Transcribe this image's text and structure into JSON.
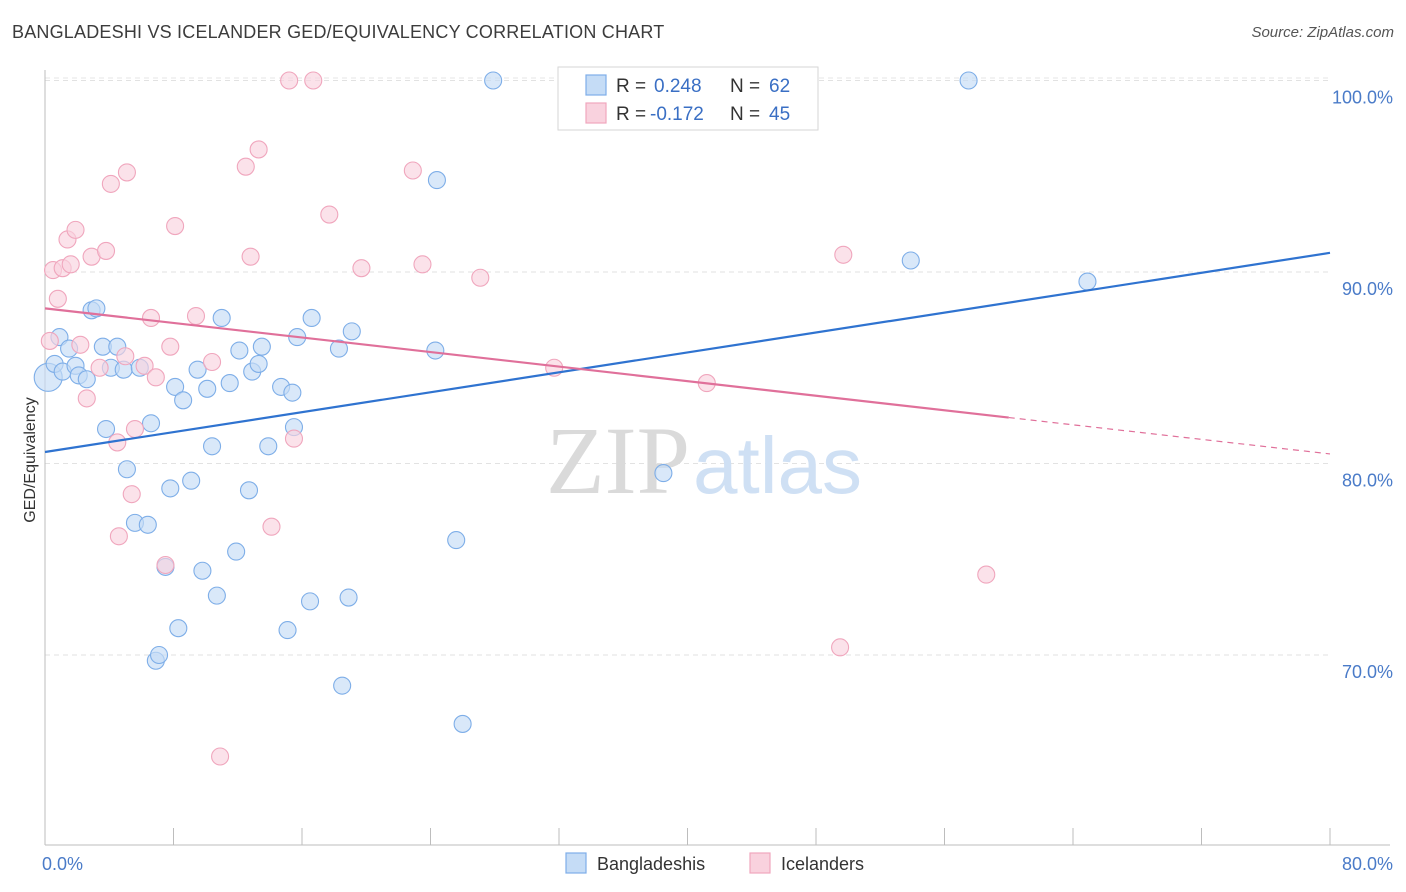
{
  "title": "BANGLADESHI VS ICELANDER GED/EQUIVALENCY CORRELATION CHART",
  "source": "Source: ZipAtlas.com",
  "watermark": {
    "zip": "ZIP",
    "atlas": "atlas"
  },
  "chart_data": {
    "type": "scatter",
    "ylabel": "GED/Equivalency",
    "xlim": [
      0,
      80
    ],
    "ylim": [
      60,
      103
    ],
    "y_ticks": [
      {
        "value": 100,
        "label": "100.0%"
      },
      {
        "value": 90,
        "label": "90.0%"
      },
      {
        "value": 80,
        "label": "80.0%"
      },
      {
        "value": 70,
        "label": "70.0%"
      }
    ],
    "x_tick_labels": [
      {
        "value": 0,
        "label": "0.0%"
      },
      {
        "value": 80,
        "label": "80.0%"
      }
    ],
    "x_minor_ticks": [
      0,
      8,
      16,
      24,
      32,
      40,
      48,
      56,
      64,
      72,
      80
    ],
    "grid": true,
    "legend": {
      "placement": "top-center",
      "rows": [
        {
          "r_label": "R =",
          "r_value": "0.248",
          "n_label": "N =",
          "n_value": "62"
        },
        {
          "r_label": "R =",
          "r_value": "-0.172",
          "n_label": "N =",
          "n_value": "45"
        }
      ]
    },
    "series": [
      {
        "name": "Bangladeshis",
        "color": "#7eaee8",
        "fill": "#c5dcf6",
        "trend_color": "#2f73d0",
        "trend": {
          "x0": 0,
          "y0": 80.6,
          "x1": 80,
          "y1": 91.0
        },
        "points": [
          [
            0.2,
            84.5
          ],
          [
            0.6,
            85.2
          ],
          [
            0.9,
            86.6
          ],
          [
            1.1,
            84.8
          ],
          [
            1.5,
            86.0
          ],
          [
            1.9,
            85.1
          ],
          [
            2.1,
            84.6
          ],
          [
            2.6,
            84.4
          ],
          [
            2.9,
            88.0
          ],
          [
            3.2,
            88.1
          ],
          [
            3.6,
            86.1
          ],
          [
            3.8,
            81.8
          ],
          [
            4.1,
            85.0
          ],
          [
            4.5,
            86.1
          ],
          [
            4.9,
            84.9
          ],
          [
            5.1,
            79.7
          ],
          [
            5.6,
            76.9
          ],
          [
            5.9,
            85.0
          ],
          [
            6.4,
            76.8
          ],
          [
            6.6,
            82.1
          ],
          [
            6.9,
            69.7
          ],
          [
            7.1,
            70.0
          ],
          [
            7.5,
            74.6
          ],
          [
            7.8,
            78.7
          ],
          [
            8.1,
            84.0
          ],
          [
            8.3,
            71.4
          ],
          [
            8.6,
            83.3
          ],
          [
            9.1,
            79.1
          ],
          [
            9.5,
            84.9
          ],
          [
            9.8,
            74.4
          ],
          [
            10.1,
            83.9
          ],
          [
            10.4,
            80.9
          ],
          [
            10.7,
            73.1
          ],
          [
            11.0,
            87.6
          ],
          [
            11.5,
            84.2
          ],
          [
            11.9,
            75.4
          ],
          [
            12.1,
            85.9
          ],
          [
            12.7,
            78.6
          ],
          [
            12.9,
            84.8
          ],
          [
            13.3,
            85.2
          ],
          [
            13.5,
            86.1
          ],
          [
            13.9,
            80.9
          ],
          [
            14.7,
            84.0
          ],
          [
            15.1,
            71.3
          ],
          [
            15.4,
            83.7
          ],
          [
            15.5,
            81.9
          ],
          [
            15.7,
            86.6
          ],
          [
            16.5,
            72.8
          ],
          [
            16.6,
            87.6
          ],
          [
            18.3,
            86.0
          ],
          [
            18.5,
            68.4
          ],
          [
            18.9,
            73.0
          ],
          [
            19.1,
            86.9
          ],
          [
            24.3,
            85.9
          ],
          [
            24.4,
            94.8
          ],
          [
            25.6,
            76.0
          ],
          [
            26.0,
            66.4
          ],
          [
            27.9,
            100.0
          ],
          [
            38.5,
            79.5
          ],
          [
            53.9,
            90.6
          ],
          [
            57.5,
            100.0
          ],
          [
            64.9,
            89.5
          ]
        ]
      },
      {
        "name": "Icelanders",
        "color": "#f0a6bd",
        "fill": "#f9d2de",
        "trend_color": "#e0709a",
        "trend": {
          "x0": 0,
          "y0": 88.1,
          "x1": 60,
          "y1": 82.4
        },
        "trend_dashed": {
          "x0": 60,
          "y0": 82.4,
          "x1": 80,
          "y1": 80.5
        },
        "points": [
          [
            0.3,
            86.4
          ],
          [
            0.5,
            90.1
          ],
          [
            0.8,
            88.6
          ],
          [
            1.1,
            90.2
          ],
          [
            1.4,
            91.7
          ],
          [
            1.6,
            90.4
          ],
          [
            1.9,
            92.2
          ],
          [
            2.2,
            86.2
          ],
          [
            2.6,
            83.4
          ],
          [
            2.9,
            90.8
          ],
          [
            3.4,
            85.0
          ],
          [
            3.8,
            91.1
          ],
          [
            4.1,
            94.6
          ],
          [
            4.5,
            81.1
          ],
          [
            4.6,
            76.2
          ],
          [
            5.0,
            85.6
          ],
          [
            5.1,
            95.2
          ],
          [
            5.4,
            78.4
          ],
          [
            5.6,
            81.8
          ],
          [
            6.2,
            85.1
          ],
          [
            6.6,
            87.6
          ],
          [
            6.9,
            84.5
          ],
          [
            7.5,
            74.7
          ],
          [
            7.8,
            86.1
          ],
          [
            8.1,
            92.4
          ],
          [
            9.4,
            87.7
          ],
          [
            10.4,
            85.3
          ],
          [
            10.9,
            64.7
          ],
          [
            12.5,
            95.5
          ],
          [
            12.8,
            90.8
          ],
          [
            13.3,
            96.4
          ],
          [
            14.1,
            76.7
          ],
          [
            15.2,
            100.0
          ],
          [
            15.5,
            81.3
          ],
          [
            16.7,
            100.0
          ],
          [
            17.7,
            93.0
          ],
          [
            19.7,
            90.2
          ],
          [
            22.9,
            95.3
          ],
          [
            23.5,
            90.4
          ],
          [
            27.1,
            89.7
          ],
          [
            31.7,
            85.0
          ],
          [
            41.2,
            84.2
          ],
          [
            49.5,
            70.4
          ],
          [
            49.7,
            90.9
          ],
          [
            58.6,
            74.2
          ]
        ]
      }
    ]
  }
}
